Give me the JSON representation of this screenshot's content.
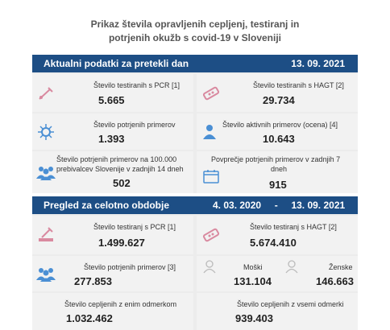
{
  "title": "Prikaz števila opravljenih cepljenj, testiranj in potrjenih okužb s covid-19 v Sloveniji",
  "title_line1": "Prikaz števila opravljenih cepljenj, testiranj in",
  "title_line2": "potrjenih okužb s covid-19 v Sloveniji",
  "section1": {
    "label": "Aktualni podatki za pretekli dan",
    "date": "13. 09. 2021",
    "pcr_label": "Število testiranih s PCR [1]",
    "pcr_value": "5.665",
    "hagt_label": "Število testiranih s HAGT [2]",
    "hagt_value": "29.734",
    "confirmed_label": "Število potrjenih primerov",
    "confirmed_value": "1.393",
    "active_label": "Število aktivnih primerov (ocena) [4]",
    "active_value": "10.643",
    "per100k_label_1": "Število potrjenih primerov na 100.000",
    "per100k_label_2": "prebivalcev Slovenije v zadnjih 14 dneh",
    "per100k_value": "502",
    "avg7_label_1": "Povprečje potrjenih primerov v zadnjih 7",
    "avg7_label_2": "dneh",
    "avg7_value": "915"
  },
  "section2": {
    "label": "Pregled za celotno obdobje",
    "date_from": "4. 03. 2020",
    "date_sep": "-",
    "date_to": "13. 09. 2021",
    "pcr_label": "Število testiranj s PCR [1]",
    "pcr_value": "1.499.627",
    "hagt_label": "Število testiranj s HAGT [2]",
    "hagt_value": "5.674.410",
    "confirmed_label": "Število potrjenih primerov [3]",
    "confirmed_value": "277.853",
    "male_label": "Moški",
    "male_value": "131.104",
    "female_label": "Ženske",
    "female_value": "146.663",
    "vacc1_label": "Število cepljenih z enim odmerkom",
    "vacc1_value": "1.032.462",
    "vacc_all_label": "Število cepljenih z vsemi odmerki",
    "vacc_all_value": "939.403"
  },
  "colors": {
    "header_bar": "#1d4e85",
    "icon_pink": "#d98aa0",
    "icon_blue": "#4a8fd4"
  },
  "icons": [
    "pcr-tube-icon",
    "hagt-test-icon",
    "virus-icon",
    "person-icon",
    "people-group-icon",
    "calendar-icon",
    "male-icon",
    "female-icon"
  ]
}
